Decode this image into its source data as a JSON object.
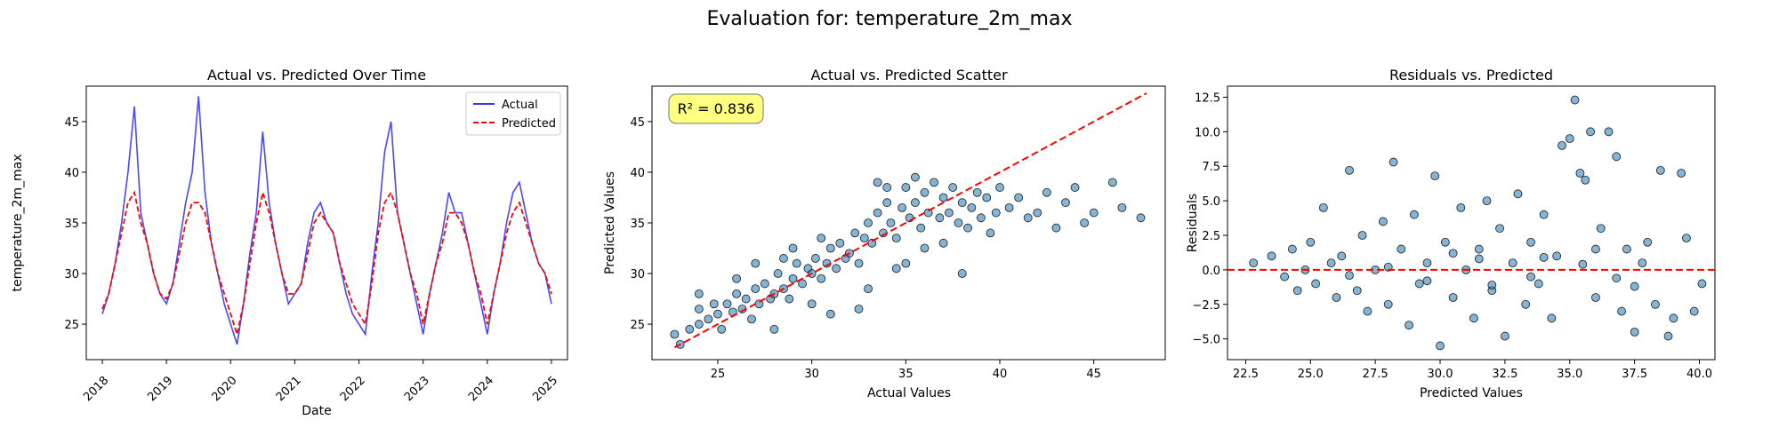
{
  "suptitle": "Evaluation for: temperature_2m_max",
  "colors": {
    "actual": "#3333ff",
    "predicted": "#ff0000",
    "scatter_fill": "#1f77b4",
    "annotation_bg": "#ffff80"
  },
  "chart_data": [
    {
      "type": "line",
      "title": "Actual vs. Predicted Over Time",
      "xlabel": "Date",
      "ylabel": "temperature_2m_max",
      "xlim": [
        2017.75,
        2025.25
      ],
      "ylim": [
        21.5,
        48.5
      ],
      "xticks": [
        2018,
        2019,
        2020,
        2021,
        2022,
        2023,
        2024,
        2025
      ],
      "xtick_labels": [
        "2018",
        "2019",
        "2020",
        "2021",
        "2022",
        "2023",
        "2024",
        "2025"
      ],
      "yticks": [
        25,
        30,
        35,
        40,
        45
      ],
      "legend": {
        "position": "top-right",
        "entries": [
          "Actual",
          "Predicted"
        ]
      },
      "series": [
        {
          "name": "Actual",
          "style": "solid",
          "x": [
            2018.0,
            2018.1,
            2018.2,
            2018.3,
            2018.4,
            2018.5,
            2018.6,
            2018.7,
            2018.8,
            2018.9,
            2019.0,
            2019.1,
            2019.2,
            2019.3,
            2019.4,
            2019.5,
            2019.6,
            2019.7,
            2019.8,
            2019.9,
            2020.0,
            2020.1,
            2020.2,
            2020.3,
            2020.4,
            2020.5,
            2020.6,
            2020.7,
            2020.8,
            2020.9,
            2021.0,
            2021.1,
            2021.2,
            2021.3,
            2021.4,
            2021.5,
            2021.6,
            2021.7,
            2021.8,
            2021.9,
            2022.0,
            2022.1,
            2022.2,
            2022.3,
            2022.4,
            2022.5,
            2022.6,
            2022.7,
            2022.8,
            2022.9,
            2023.0,
            2023.1,
            2023.2,
            2023.3,
            2023.4,
            2023.5,
            2023.6,
            2023.7,
            2023.8,
            2023.9,
            2024.0,
            2024.1,
            2024.2,
            2024.3,
            2024.4,
            2024.5,
            2024.6,
            2024.7,
            2024.8,
            2024.9,
            2025.0
          ],
          "values": [
            26,
            28,
            31,
            35,
            40,
            46.5,
            36,
            33,
            30,
            28,
            27,
            29,
            33,
            37,
            40,
            47.5,
            38,
            33,
            30,
            27,
            25,
            23,
            27,
            32,
            36,
            44,
            37,
            33,
            30,
            27,
            28,
            29,
            33,
            36,
            37,
            35,
            34,
            31,
            28,
            26,
            25,
            24,
            30,
            35,
            42,
            45,
            36,
            33,
            30,
            27,
            24,
            28,
            31,
            34,
            38,
            36,
            36,
            33,
            30,
            27,
            24,
            28,
            31,
            35,
            38,
            39,
            36,
            33,
            31,
            30,
            27
          ]
        },
        {
          "name": "Predicted",
          "style": "dashed",
          "x": [
            2018.0,
            2018.1,
            2018.2,
            2018.3,
            2018.4,
            2018.5,
            2018.6,
            2018.7,
            2018.8,
            2018.9,
            2019.0,
            2019.1,
            2019.2,
            2019.3,
            2019.4,
            2019.5,
            2019.6,
            2019.7,
            2019.8,
            2019.9,
            2020.0,
            2020.1,
            2020.2,
            2020.3,
            2020.4,
            2020.5,
            2020.6,
            2020.7,
            2020.8,
            2020.9,
            2021.0,
            2021.1,
            2021.2,
            2021.3,
            2021.4,
            2021.5,
            2021.6,
            2021.7,
            2021.8,
            2021.9,
            2022.0,
            2022.1,
            2022.2,
            2022.3,
            2022.4,
            2022.5,
            2022.6,
            2022.7,
            2022.8,
            2022.9,
            2023.0,
            2023.1,
            2023.2,
            2023.3,
            2023.4,
            2023.5,
            2023.6,
            2023.7,
            2023.8,
            2023.9,
            2024.0,
            2024.1,
            2024.2,
            2024.3,
            2024.4,
            2024.5,
            2024.6,
            2024.7,
            2024.8,
            2024.9,
            2025.0
          ],
          "values": [
            26.5,
            28,
            31,
            34,
            37,
            38,
            35,
            33,
            30,
            28,
            27.5,
            29,
            32,
            35,
            37,
            37,
            36,
            33,
            30,
            28,
            26,
            24,
            27,
            31,
            35,
            38,
            36,
            33,
            30,
            28,
            28,
            29,
            32,
            35,
            36,
            35,
            34,
            31,
            29,
            27,
            26,
            25,
            29,
            34,
            37,
            38,
            36,
            33,
            30,
            28,
            25,
            28,
            31,
            33,
            36,
            36,
            35,
            33,
            30,
            28,
            25,
            28,
            31,
            34,
            36,
            37,
            35,
            33,
            31,
            30,
            28
          ]
        }
      ]
    },
    {
      "type": "scatter",
      "title": "Actual vs. Predicted Scatter",
      "xlabel": "Actual Values",
      "ylabel": "Predicted Values",
      "xlim": [
        21.5,
        48.8
      ],
      "ylim": [
        21.5,
        48.5
      ],
      "xticks": [
        25,
        30,
        35,
        40,
        45
      ],
      "yticks": [
        25,
        30,
        35,
        40,
        45
      ],
      "annotation": "R² = 0.836",
      "reference_line": {
        "style": "dashed",
        "from": [
          22.7,
          22.7
        ],
        "to": [
          47.8,
          47.8
        ]
      },
      "points": [
        [
          22.7,
          24.0
        ],
        [
          23.0,
          23.0
        ],
        [
          23.5,
          24.5
        ],
        [
          24.0,
          25.0
        ],
        [
          24.0,
          26.5
        ],
        [
          24.5,
          25.5
        ],
        [
          24.8,
          27.0
        ],
        [
          25.0,
          26.0
        ],
        [
          25.2,
          24.5
        ],
        [
          25.5,
          27.0
        ],
        [
          25.8,
          26.2
        ],
        [
          26.0,
          28.0
        ],
        [
          26.3,
          26.5
        ],
        [
          26.5,
          27.5
        ],
        [
          26.8,
          25.5
        ],
        [
          27.0,
          28.5
        ],
        [
          27.2,
          27.0
        ],
        [
          27.5,
          29.0
        ],
        [
          27.8,
          27.5
        ],
        [
          28.0,
          28.0
        ],
        [
          28.2,
          30.0
        ],
        [
          28.5,
          28.5
        ],
        [
          28.8,
          27.5
        ],
        [
          29.0,
          29.5
        ],
        [
          29.2,
          31.0
        ],
        [
          29.5,
          29.0
        ],
        [
          29.8,
          30.5
        ],
        [
          30.0,
          30.0
        ],
        [
          30.2,
          31.5
        ],
        [
          30.5,
          29.5
        ],
        [
          30.8,
          31.0
        ],
        [
          31.0,
          32.5
        ],
        [
          31.3,
          30.5
        ],
        [
          31.5,
          33.0
        ],
        [
          31.8,
          31.5
        ],
        [
          32.0,
          32.0
        ],
        [
          32.3,
          34.0
        ],
        [
          32.5,
          31.0
        ],
        [
          32.8,
          33.5
        ],
        [
          33.0,
          35.0
        ],
        [
          33.2,
          33.0
        ],
        [
          33.5,
          36.0
        ],
        [
          33.8,
          34.0
        ],
        [
          34.0,
          37.0
        ],
        [
          34.2,
          35.0
        ],
        [
          34.5,
          33.5
        ],
        [
          34.8,
          36.5
        ],
        [
          35.0,
          38.5
        ],
        [
          35.2,
          35.5
        ],
        [
          35.5,
          37.0
        ],
        [
          35.8,
          34.5
        ],
        [
          36.0,
          38.0
        ],
        [
          36.2,
          36.0
        ],
        [
          36.5,
          39.0
        ],
        [
          36.8,
          35.5
        ],
        [
          37.0,
          37.5
        ],
        [
          37.3,
          36.0
        ],
        [
          37.5,
          38.5
        ],
        [
          37.8,
          35.0
        ],
        [
          38.0,
          37.0
        ],
        [
          38.3,
          34.5
        ],
        [
          38.5,
          36.5
        ],
        [
          38.8,
          38.0
        ],
        [
          39.0,
          35.5
        ],
        [
          39.3,
          37.5
        ],
        [
          39.5,
          34.0
        ],
        [
          39.8,
          36.0
        ],
        [
          40.0,
          38.5
        ],
        [
          40.5,
          36.5
        ],
        [
          41.0,
          37.5
        ],
        [
          41.5,
          35.5
        ],
        [
          42.0,
          36.0
        ],
        [
          42.5,
          38.0
        ],
        [
          43.0,
          34.5
        ],
        [
          43.5,
          37.0
        ],
        [
          44.0,
          38.5
        ],
        [
          44.5,
          35.0
        ],
        [
          45.0,
          36.0
        ],
        [
          46.0,
          39.0
        ],
        [
          46.5,
          36.5
        ],
        [
          47.5,
          35.5
        ],
        [
          32.5,
          26.5
        ],
        [
          30.0,
          27.0
        ],
        [
          33.0,
          28.5
        ],
        [
          34.5,
          30.5
        ],
        [
          36.0,
          32.5
        ],
        [
          31.0,
          26.0
        ],
        [
          28.0,
          24.5
        ],
        [
          35.0,
          31.0
        ],
        [
          37.0,
          33.0
        ],
        [
          38.0,
          30.0
        ],
        [
          29.0,
          32.5
        ],
        [
          27.0,
          31.0
        ],
        [
          26.0,
          29.5
        ],
        [
          24.0,
          28.0
        ],
        [
          33.5,
          39.0
        ],
        [
          35.5,
          39.5
        ],
        [
          34.0,
          38.5
        ],
        [
          30.5,
          33.5
        ],
        [
          28.5,
          31.5
        ]
      ]
    },
    {
      "type": "scatter",
      "title": "Residuals vs. Predicted",
      "xlabel": "Predicted Values",
      "ylabel": "Residuals",
      "xlim": [
        21.8,
        40.6
      ],
      "ylim": [
        -6.5,
        13.3
      ],
      "xticks": [
        22.5,
        25.0,
        27.5,
        30.0,
        32.5,
        35.0,
        37.5,
        40.0
      ],
      "xtick_labels": [
        "22.5",
        "25.0",
        "27.5",
        "30.0",
        "32.5",
        "35.0",
        "37.5",
        "40.0"
      ],
      "yticks": [
        -5.0,
        -2.5,
        0.0,
        2.5,
        5.0,
        7.5,
        10.0,
        12.5
      ],
      "ytick_labels": [
        "−5.0",
        "−2.5",
        "0.0",
        "2.5",
        "5.0",
        "7.5",
        "10.0",
        "12.5"
      ],
      "reference_line": {
        "style": "dashed",
        "y": 0
      },
      "points": [
        [
          22.8,
          0.5
        ],
        [
          23.5,
          1.0
        ],
        [
          24.0,
          -0.5
        ],
        [
          24.3,
          1.5
        ],
        [
          24.5,
          -1.5
        ],
        [
          24.8,
          0.0
        ],
        [
          25.0,
          2.0
        ],
        [
          25.2,
          -1.0
        ],
        [
          25.5,
          4.5
        ],
        [
          25.8,
          0.5
        ],
        [
          26.0,
          -2.0
        ],
        [
          26.2,
          1.0
        ],
        [
          26.5,
          7.2
        ],
        [
          26.8,
          -1.5
        ],
        [
          27.0,
          2.5
        ],
        [
          27.2,
          -3.0
        ],
        [
          27.5,
          0.0
        ],
        [
          27.8,
          3.5
        ],
        [
          28.0,
          -2.5
        ],
        [
          28.2,
          7.8
        ],
        [
          28.5,
          1.5
        ],
        [
          28.8,
          -4.0
        ],
        [
          29.0,
          4.0
        ],
        [
          29.2,
          -1.0
        ],
        [
          29.5,
          0.5
        ],
        [
          29.8,
          6.8
        ],
        [
          30.0,
          -5.5
        ],
        [
          30.2,
          2.0
        ],
        [
          30.5,
          -2.0
        ],
        [
          30.8,
          4.5
        ],
        [
          31.0,
          0.0
        ],
        [
          31.3,
          -3.5
        ],
        [
          31.5,
          1.5
        ],
        [
          31.8,
          5.0
        ],
        [
          32.0,
          -1.5
        ],
        [
          32.3,
          3.0
        ],
        [
          32.5,
          -4.8
        ],
        [
          32.8,
          0.5
        ],
        [
          33.0,
          5.5
        ],
        [
          33.3,
          -2.5
        ],
        [
          33.5,
          2.0
        ],
        [
          33.8,
          -1.0
        ],
        [
          34.0,
          4.0
        ],
        [
          34.3,
          -3.5
        ],
        [
          34.5,
          1.0
        ],
        [
          34.7,
          9.0
        ],
        [
          35.0,
          9.5
        ],
        [
          35.2,
          12.3
        ],
        [
          35.4,
          7.0
        ],
        [
          35.6,
          6.5
        ],
        [
          35.8,
          10.0
        ],
        [
          36.0,
          -2.0
        ],
        [
          36.2,
          3.0
        ],
        [
          36.5,
          10.0
        ],
        [
          36.8,
          8.2
        ],
        [
          37.0,
          -3.0
        ],
        [
          37.2,
          1.5
        ],
        [
          37.5,
          -4.5
        ],
        [
          37.8,
          0.5
        ],
        [
          38.0,
          2.0
        ],
        [
          38.3,
          -2.5
        ],
        [
          38.5,
          7.2
        ],
        [
          38.8,
          -4.8
        ],
        [
          39.0,
          -3.5
        ],
        [
          39.3,
          7.0
        ],
        [
          39.5,
          2.3
        ],
        [
          39.8,
          -3.0
        ],
        [
          40.1,
          -1.0
        ],
        [
          29.5,
          -0.8
        ],
        [
          31.5,
          0.8
        ],
        [
          33.5,
          -0.5
        ],
        [
          35.5,
          0.4
        ],
        [
          36.8,
          -0.6
        ],
        [
          28.0,
          0.2
        ],
        [
          26.5,
          -0.4
        ],
        [
          30.5,
          1.2
        ],
        [
          32.0,
          -1.1
        ],
        [
          34.0,
          0.9
        ],
        [
          36.0,
          1.5
        ],
        [
          37.5,
          -1.2
        ]
      ]
    }
  ]
}
